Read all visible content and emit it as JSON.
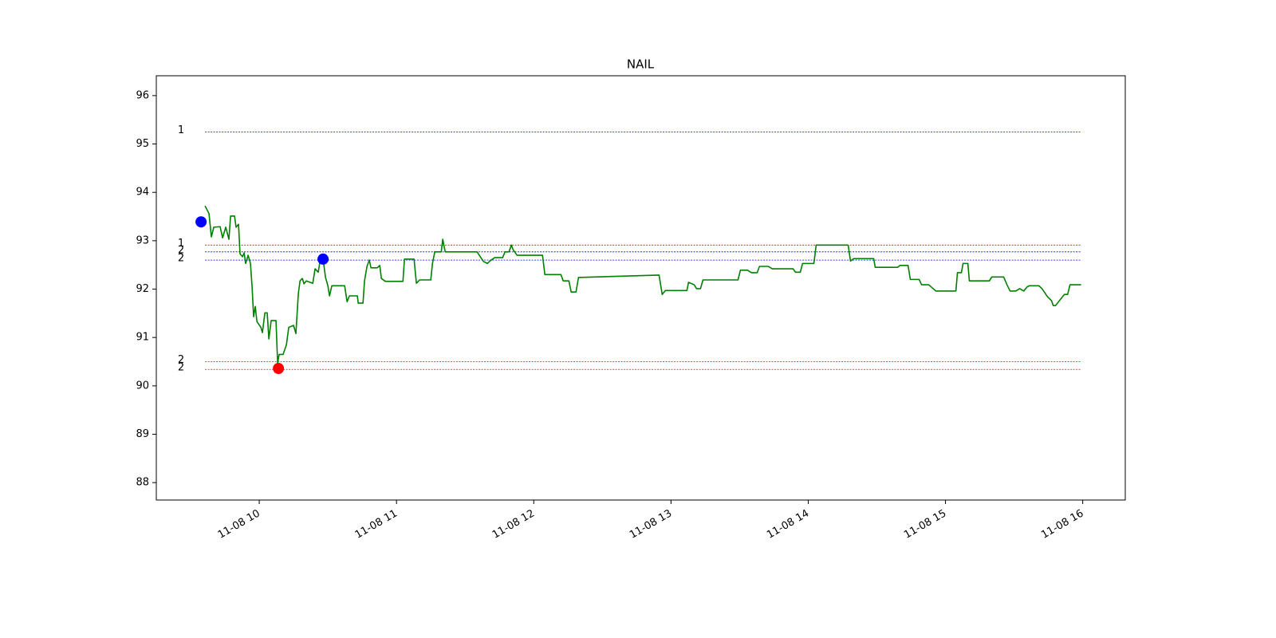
{
  "chart_data": {
    "type": "line",
    "title": "NAIL",
    "x": [
      9.605,
      9.634,
      9.651,
      9.669,
      9.715,
      9.733,
      9.756,
      9.779,
      9.791,
      9.82,
      9.831,
      9.849,
      9.86,
      9.878,
      9.89,
      9.901,
      9.919,
      9.936,
      9.948,
      9.959,
      9.971,
      9.983,
      10.012,
      10.023,
      10.041,
      10.058,
      10.07,
      10.087,
      10.122,
      10.134,
      10.145,
      10.174,
      10.198,
      10.215,
      10.25,
      10.267,
      10.285,
      10.297,
      10.314,
      10.326,
      10.343,
      10.39,
      10.407,
      10.43,
      10.442,
      10.465,
      10.483,
      10.5,
      10.512,
      10.529,
      10.622,
      10.64,
      10.657,
      10.715,
      10.721,
      10.756,
      10.767,
      10.785,
      10.802,
      10.814,
      10.86,
      10.878,
      10.89,
      10.919,
      11.047,
      11.058,
      11.128,
      11.145,
      11.169,
      11.25,
      11.262,
      11.279,
      11.326,
      11.337,
      11.355,
      11.587,
      11.634,
      11.663,
      11.68,
      11.715,
      11.773,
      11.791,
      11.82,
      11.837,
      11.849,
      11.878,
      12.064,
      12.081,
      12.198,
      12.215,
      12.256,
      12.273,
      12.308,
      12.326,
      12.913,
      12.936,
      12.959,
      13.116,
      13.128,
      13.169,
      13.186,
      13.215,
      13.233,
      13.488,
      13.506,
      13.558,
      13.587,
      13.628,
      13.645,
      13.709,
      13.738,
      13.89,
      13.907,
      13.942,
      13.959,
      14.041,
      14.058,
      14.291,
      14.308,
      14.331,
      14.477,
      14.488,
      14.651,
      14.669,
      14.727,
      14.744,
      14.808,
      14.826,
      14.878,
      14.93,
      15.076,
      15.087,
      15.116,
      15.128,
      15.163,
      15.174,
      15.32,
      15.337,
      15.424,
      15.448,
      15.471,
      15.512,
      15.541,
      15.57,
      15.593,
      15.61,
      15.68,
      15.703,
      15.744,
      15.773,
      15.785,
      15.802,
      15.866,
      15.89,
      15.907,
      15.988
    ],
    "series": [
      {
        "color": "#008000",
        "values": [
          93.72,
          93.56,
          93.08,
          93.28,
          93.29,
          93.06,
          93.28,
          93.03,
          93.51,
          93.51,
          93.28,
          93.34,
          92.73,
          92.67,
          92.75,
          92.53,
          92.7,
          92.53,
          92.04,
          91.43,
          91.64,
          91.33,
          91.21,
          91.1,
          91.51,
          91.51,
          90.97,
          91.35,
          91.35,
          90.47,
          90.65,
          90.65,
          90.85,
          91.21,
          91.25,
          91.08,
          91.91,
          92.17,
          92.22,
          92.11,
          92.17,
          92.12,
          92.42,
          92.35,
          92.57,
          92.62,
          92.24,
          92.07,
          91.86,
          92.07,
          92.07,
          91.74,
          91.86,
          91.86,
          91.71,
          91.71,
          92.17,
          92.47,
          92.6,
          92.44,
          92.44,
          92.49,
          92.22,
          92.16,
          92.16,
          92.62,
          92.62,
          92.12,
          92.19,
          92.19,
          92.53,
          92.77,
          92.77,
          93.03,
          92.77,
          92.77,
          92.57,
          92.53,
          92.58,
          92.65,
          92.65,
          92.77,
          92.77,
          92.91,
          92.82,
          92.7,
          92.7,
          92.3,
          92.3,
          92.17,
          92.17,
          91.94,
          91.94,
          92.24,
          92.29,
          91.89,
          91.97,
          91.97,
          92.14,
          92.09,
          92.01,
          92.01,
          92.19,
          92.19,
          92.39,
          92.39,
          92.34,
          92.34,
          92.47,
          92.47,
          92.42,
          92.42,
          92.35,
          92.35,
          92.53,
          92.53,
          92.91,
          92.91,
          92.58,
          92.63,
          92.63,
          92.45,
          92.45,
          92.49,
          92.49,
          92.2,
          92.2,
          92.09,
          92.09,
          91.96,
          91.96,
          92.34,
          92.34,
          92.53,
          92.53,
          92.17,
          92.17,
          92.25,
          92.25,
          92.09,
          91.96,
          91.96,
          92.01,
          91.96,
          92.04,
          92.07,
          92.07,
          92.01,
          91.84,
          91.76,
          91.66,
          91.66,
          91.89,
          91.89,
          92.09,
          92.09
        ]
      }
    ],
    "levels": [
      {
        "value": 95.25,
        "label": "1",
        "color": "#0000ff"
      },
      {
        "value": 92.91,
        "label": "1",
        "color": "#ff0000"
      },
      {
        "value": 92.77,
        "label": "2",
        "color": "#0000ff"
      },
      {
        "value": 92.6,
        "label": "2",
        "color": "#0000ff"
      },
      {
        "value": 90.5,
        "label": "2",
        "color": "#ff0000"
      },
      {
        "value": 90.34,
        "label": "2",
        "color": "#ff0000"
      }
    ],
    "markers": [
      {
        "x": 9.576,
        "y": 93.39,
        "color": "#0000ff"
      },
      {
        "x": 10.14,
        "y": 90.36,
        "color": "#ff0000"
      },
      {
        "x": 10.465,
        "y": 92.62,
        "color": "#0000ff"
      }
    ],
    "xlim": [
      9.25,
      16.31
    ],
    "ylim": [
      87.64,
      96.41
    ],
    "xticks": [
      {
        "value": 10,
        "label": "11-08 10"
      },
      {
        "value": 11,
        "label": "11-08 11"
      },
      {
        "value": 12,
        "label": "11-08 12"
      },
      {
        "value": 13,
        "label": "11-08 13"
      },
      {
        "value": 14,
        "label": "11-08 14"
      },
      {
        "value": 15,
        "label": "11-08 15"
      },
      {
        "value": 16,
        "label": "11-08 16"
      }
    ],
    "yticks": [
      88,
      89,
      90,
      91,
      92,
      93,
      94,
      95,
      96
    ]
  }
}
